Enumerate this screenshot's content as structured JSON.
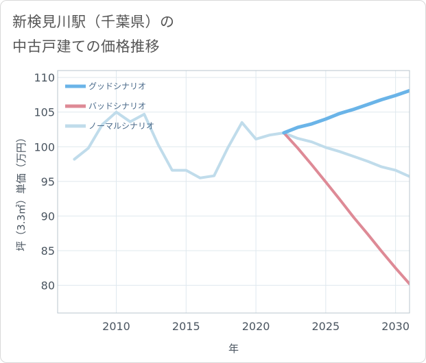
{
  "title": {
    "line1": "新検見川駅（千葉県）の",
    "line2": "中古戸建ての価格推移"
  },
  "chart_data": {
    "type": "line",
    "xlabel": "年",
    "ylabel": "坪（3.3㎡）単価（万円）",
    "xlim": [
      2005.8,
      2031
    ],
    "ylim": [
      76,
      111
    ],
    "xticks": [
      2010,
      2015,
      2020,
      2025,
      2030
    ],
    "yticks": [
      80,
      85,
      90,
      95,
      100,
      105,
      110
    ],
    "legend_position": "top-left",
    "series": [
      {
        "name": "グッドシナリオ",
        "color": "#6ab4e8",
        "width": 5,
        "x": [
          2022,
          2023,
          2024,
          2025,
          2026,
          2027,
          2028,
          2029,
          2030,
          2031
        ],
        "y": [
          102.0,
          102.8,
          103.3,
          104.0,
          104.8,
          105.4,
          106.1,
          106.8,
          107.4,
          108.1
        ]
      },
      {
        "name": "バッドシナリオ",
        "color": "#de8a96",
        "width": 4,
        "x": [
          2022,
          2023,
          2024,
          2025,
          2026,
          2027,
          2028,
          2029,
          2030,
          2031
        ],
        "y": [
          102.0,
          99.8,
          97.4,
          94.9,
          92.4,
          89.8,
          87.4,
          84.9,
          82.5,
          80.2
        ]
      },
      {
        "name": "ノーマルシナリオ",
        "color": "#c0dceb",
        "width": 4,
        "x": [
          2007,
          2008,
          2009,
          2010,
          2011,
          2012,
          2013,
          2014,
          2015,
          2016,
          2017,
          2018,
          2019,
          2020,
          2021,
          2022,
          2023,
          2024,
          2025,
          2026,
          2027,
          2028,
          2029,
          2030,
          2031
        ],
        "y": [
          98.2,
          99.8,
          103.2,
          105.0,
          103.6,
          104.7,
          100.3,
          96.6,
          96.6,
          95.5,
          95.8,
          99.9,
          103.5,
          101.1,
          101.7,
          102.0,
          101.2,
          100.7,
          99.9,
          99.3,
          98.6,
          97.9,
          97.1,
          96.6,
          95.7
        ]
      }
    ]
  }
}
